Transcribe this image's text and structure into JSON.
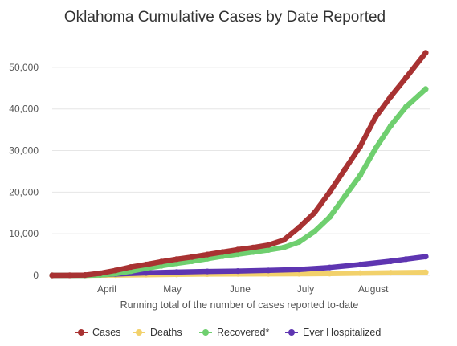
{
  "chart_data": {
    "type": "line",
    "title": "Oklahoma Cumulative Cases by Date Reported",
    "xlabel": "Running total of the number of cases reported to-date",
    "ylabel": "",
    "x_range": [
      "2020-03-07",
      "2020-08-25"
    ],
    "ylim": [
      0,
      55000
    ],
    "y_ticks": [
      {
        "value": 0,
        "label": "0"
      },
      {
        "value": 10000,
        "label": "10,000"
      },
      {
        "value": 20000,
        "label": "20,000"
      },
      {
        "value": 30000,
        "label": "30,000"
      },
      {
        "value": 40000,
        "label": "40,000"
      },
      {
        "value": 50000,
        "label": "50,000"
      }
    ],
    "x_ticks": [
      {
        "date": "2020-04-01",
        "label": "April"
      },
      {
        "date": "2020-05-01",
        "label": "May"
      },
      {
        "date": "2020-06-01",
        "label": "June"
      },
      {
        "date": "2020-07-01",
        "label": "July"
      },
      {
        "date": "2020-08-01",
        "label": "August"
      }
    ],
    "grid": true,
    "legend_position": "bottom",
    "series": [
      {
        "name": "Cases",
        "color": "#a83232",
        "points": [
          [
            "2020-03-07",
            0
          ],
          [
            "2020-03-15",
            10
          ],
          [
            "2020-03-22",
            80
          ],
          [
            "2020-03-29",
            500
          ],
          [
            "2020-04-05",
            1200
          ],
          [
            "2020-04-12",
            2000
          ],
          [
            "2020-04-19",
            2600
          ],
          [
            "2020-04-26",
            3300
          ],
          [
            "2020-05-03",
            3900
          ],
          [
            "2020-05-10",
            4400
          ],
          [
            "2020-05-17",
            5000
          ],
          [
            "2020-05-24",
            5600
          ],
          [
            "2020-05-31",
            6200
          ],
          [
            "2020-06-07",
            6700
          ],
          [
            "2020-06-14",
            7300
          ],
          [
            "2020-06-21",
            8500
          ],
          [
            "2020-06-28",
            11500
          ],
          [
            "2020-07-05",
            15000
          ],
          [
            "2020-07-12",
            20000
          ],
          [
            "2020-07-19",
            25500
          ],
          [
            "2020-07-26",
            31000
          ],
          [
            "2020-08-02",
            38000
          ],
          [
            "2020-08-09",
            43000
          ],
          [
            "2020-08-16",
            47500
          ],
          [
            "2020-08-25",
            53500
          ]
        ]
      },
      {
        "name": "Deaths",
        "color": "#f2d16b",
        "points": [
          [
            "2020-03-07",
            0
          ],
          [
            "2020-03-22",
            2
          ],
          [
            "2020-04-05",
            80
          ],
          [
            "2020-04-19",
            150
          ],
          [
            "2020-05-03",
            240
          ],
          [
            "2020-05-17",
            300
          ],
          [
            "2020-05-31",
            340
          ],
          [
            "2020-06-14",
            360
          ],
          [
            "2020-06-28",
            390
          ],
          [
            "2020-07-12",
            430
          ],
          [
            "2020-07-26",
            540
          ],
          [
            "2020-08-09",
            640
          ],
          [
            "2020-08-25",
            740
          ]
        ]
      },
      {
        "name": "Recovered*",
        "color": "#6fcf6f",
        "points": [
          [
            "2020-03-07",
            0
          ],
          [
            "2020-03-22",
            0
          ],
          [
            "2020-03-29",
            100
          ],
          [
            "2020-04-05",
            400
          ],
          [
            "2020-04-12",
            1000
          ],
          [
            "2020-04-19",
            1700
          ],
          [
            "2020-04-26",
            2300
          ],
          [
            "2020-05-03",
            2900
          ],
          [
            "2020-05-10",
            3400
          ],
          [
            "2020-05-17",
            4000
          ],
          [
            "2020-05-24",
            4600
          ],
          [
            "2020-05-31",
            5100
          ],
          [
            "2020-06-07",
            5600
          ],
          [
            "2020-06-14",
            6100
          ],
          [
            "2020-06-21",
            6700
          ],
          [
            "2020-06-28",
            8000
          ],
          [
            "2020-07-05",
            10500
          ],
          [
            "2020-07-12",
            14000
          ],
          [
            "2020-07-19",
            19000
          ],
          [
            "2020-07-26",
            24000
          ],
          [
            "2020-08-02",
            30500
          ],
          [
            "2020-08-09",
            36000
          ],
          [
            "2020-08-16",
            40500
          ],
          [
            "2020-08-25",
            44800
          ]
        ]
      },
      {
        "name": "Ever Hospitalized",
        "color": "#5e35b1",
        "points": [
          [
            "2020-03-07",
            0
          ],
          [
            "2020-03-22",
            10
          ],
          [
            "2020-04-05",
            300
          ],
          [
            "2020-04-19",
            600
          ],
          [
            "2020-05-03",
            800
          ],
          [
            "2020-05-17",
            950
          ],
          [
            "2020-05-31",
            1050
          ],
          [
            "2020-06-14",
            1200
          ],
          [
            "2020-06-28",
            1400
          ],
          [
            "2020-07-12",
            1900
          ],
          [
            "2020-07-26",
            2600
          ],
          [
            "2020-08-09",
            3400
          ],
          [
            "2020-08-16",
            3900
          ],
          [
            "2020-08-25",
            4500
          ]
        ]
      }
    ]
  }
}
